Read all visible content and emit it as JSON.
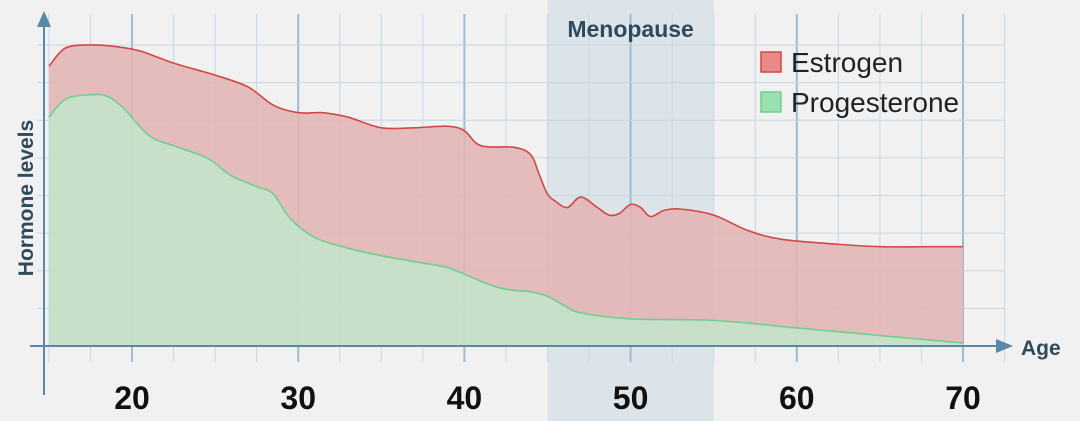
{
  "chart_data": {
    "type": "area",
    "title": "",
    "xlabel": "Age",
    "ylabel": "Hormone levels",
    "xlim": [
      15,
      70
    ],
    "ylim": [
      0,
      100
    ],
    "x_ticks": [
      20,
      30,
      40,
      50,
      60,
      70
    ],
    "grid": true,
    "legend_position": "top-right",
    "band": {
      "label": "Menopause",
      "x_range": [
        45,
        55
      ],
      "color": "#dde4e9"
    },
    "series": [
      {
        "name": "Estrogen",
        "fill": "#e3b3b3",
        "stroke": "#d24747",
        "swatch_fill": "#e98a8a",
        "points": [
          [
            15,
            93
          ],
          [
            16,
            99
          ],
          [
            17.5,
            100
          ],
          [
            19,
            99.5
          ],
          [
            20.5,
            98
          ],
          [
            22.5,
            94
          ],
          [
            25,
            90
          ],
          [
            27,
            86
          ],
          [
            28.5,
            80
          ],
          [
            30,
            77.5
          ],
          [
            31.5,
            77.5
          ],
          [
            33,
            76
          ],
          [
            35,
            72.5
          ],
          [
            37,
            72.5
          ],
          [
            39,
            73
          ],
          [
            40,
            71.5
          ],
          [
            41,
            66.5
          ],
          [
            43,
            66
          ],
          [
            44,
            63.5
          ],
          [
            44.5,
            57
          ],
          [
            45,
            50.5
          ],
          [
            45.5,
            48
          ],
          [
            46.2,
            46
          ],
          [
            47,
            49.5
          ],
          [
            48,
            46
          ],
          [
            48.7,
            43.5
          ],
          [
            49.3,
            44
          ],
          [
            50,
            47
          ],
          [
            50.6,
            46
          ],
          [
            51.2,
            43
          ],
          [
            52,
            45
          ],
          [
            53,
            45.5
          ],
          [
            55,
            43.5
          ],
          [
            57,
            38.5
          ],
          [
            59,
            35.5
          ],
          [
            62,
            34
          ],
          [
            65,
            33
          ],
          [
            68,
            33
          ],
          [
            70,
            33
          ]
        ]
      },
      {
        "name": "Progesterone",
        "fill": "#c3e4cb",
        "stroke": "#6fd08d",
        "swatch_fill": "#9ae1b2",
        "points": [
          [
            15,
            76
          ],
          [
            16,
            82
          ],
          [
            17.5,
            83.5
          ],
          [
            18.5,
            83
          ],
          [
            19.5,
            79
          ],
          [
            21,
            70
          ],
          [
            22.5,
            66.5
          ],
          [
            24.5,
            62.5
          ],
          [
            26,
            56.5
          ],
          [
            27.5,
            53
          ],
          [
            28.5,
            50.5
          ],
          [
            29.5,
            42.5
          ],
          [
            31,
            36
          ],
          [
            33,
            32.5
          ],
          [
            35,
            30
          ],
          [
            37,
            28
          ],
          [
            39,
            26
          ],
          [
            41,
            21.5
          ],
          [
            42,
            19.5
          ],
          [
            43,
            18.5
          ],
          [
            44,
            18
          ],
          [
            45,
            16.5
          ],
          [
            46,
            13.5
          ],
          [
            47,
            11
          ],
          [
            50,
            9
          ],
          [
            55,
            8.5
          ],
          [
            60,
            6
          ],
          [
            65,
            3.5
          ],
          [
            70,
            1
          ]
        ]
      }
    ]
  }
}
